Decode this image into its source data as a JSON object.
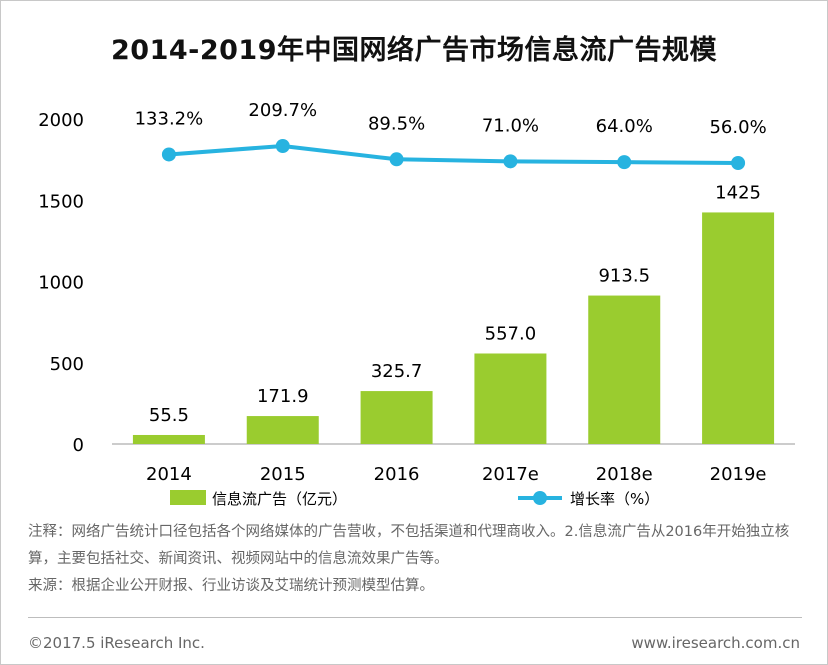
{
  "chart_data": {
    "type": "bar+line",
    "title": "2014-2019年中国网络广告市场信息流广告规模",
    "categories": [
      "2014",
      "2015",
      "2016",
      "2017e",
      "2018e",
      "2019e"
    ],
    "series": [
      {
        "name": "信息流广告（亿元）",
        "kind": "bar",
        "color": "#9acc2f",
        "values": [
          55.5,
          171.9,
          325.7,
          557.0,
          913.5,
          1425
        ],
        "labels": [
          "55.5",
          "171.9",
          "325.7",
          "557.0",
          "913.5",
          "1425"
        ]
      },
      {
        "name": "增长率（%）",
        "kind": "line",
        "color": "#27b3e0",
        "values": [
          133.2,
          209.7,
          89.5,
          71.0,
          64.0,
          56.0
        ],
        "labels": [
          "133.2%",
          "209.7%",
          "89.5%",
          "71.0%",
          "64.0%",
          "56.0%"
        ]
      }
    ],
    "y_ticks": [
      "2000",
      "1500",
      "1000",
      "500",
      "0"
    ],
    "ylim": [
      0,
      2000
    ],
    "legend_position": "bottom",
    "grid": false
  },
  "note": {
    "text": "注释：网络广告统计口径包括各个网络媒体的广告营收，不包括渠道和代理商收入。2.信息流广告从2016年开始独立核算，主要包括社交、新闻资讯、视频网站中的信息流效果广告等。",
    "source": "来源：根据企业公开财报、行业访谈及艾瑞统计预测模型估算。"
  },
  "footer": {
    "copyright": "©2017.5 iResearch Inc.",
    "website": "www.iresearch.com.cn"
  }
}
